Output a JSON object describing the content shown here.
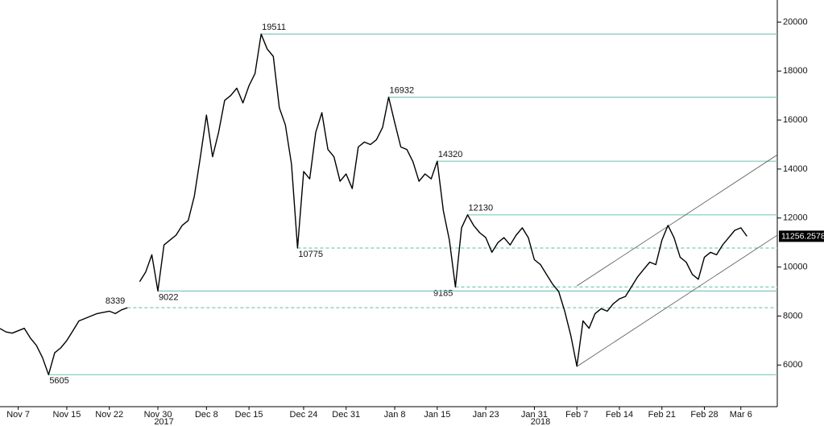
{
  "chart_data": {
    "type": "line",
    "color": "#000000",
    "level_color": "#7cc9bb",
    "x": [
      "2017-11-04",
      "2017-11-05",
      "2017-11-06",
      "2017-11-07",
      "2017-11-08",
      "2017-11-09",
      "2017-11-10",
      "2017-11-11",
      "2017-11-12",
      "2017-11-13",
      "2017-11-14",
      "2017-11-15",
      "2017-11-16",
      "2017-11-17",
      "2017-11-18",
      "2017-11-19",
      "2017-11-20",
      "2017-11-21",
      "2017-11-22",
      "2017-11-23",
      "2017-11-24",
      "2017-11-25",
      "2017-11-26",
      "2017-11-27",
      "2017-11-28",
      "2017-11-29",
      "2017-11-30",
      "2017-12-01",
      "2017-12-02",
      "2017-12-03",
      "2017-12-04",
      "2017-12-05",
      "2017-12-06",
      "2017-12-07",
      "2017-12-08",
      "2017-12-09",
      "2017-12-10",
      "2017-12-11",
      "2017-12-12",
      "2017-12-13",
      "2017-12-14",
      "2017-12-15",
      "2017-12-16",
      "2017-12-17",
      "2017-12-18",
      "2017-12-19",
      "2017-12-20",
      "2017-12-21",
      "2017-12-22",
      "2017-12-23",
      "2017-12-24",
      "2017-12-25",
      "2017-12-26",
      "2017-12-27",
      "2017-12-28",
      "2017-12-29",
      "2017-12-30",
      "2017-12-31",
      "2018-01-01",
      "2018-01-02",
      "2018-01-03",
      "2018-01-04",
      "2018-01-05",
      "2018-01-06",
      "2018-01-07",
      "2018-01-08",
      "2018-01-09",
      "2018-01-10",
      "2018-01-11",
      "2018-01-12",
      "2018-01-13",
      "2018-01-14",
      "2018-01-15",
      "2018-01-16",
      "2018-01-17",
      "2018-01-18",
      "2018-01-19",
      "2018-01-20",
      "2018-01-21",
      "2018-01-22",
      "2018-01-23",
      "2018-01-24",
      "2018-01-25",
      "2018-01-26",
      "2018-01-27",
      "2018-01-28",
      "2018-01-29",
      "2018-01-30",
      "2018-01-31",
      "2018-02-01",
      "2018-02-02",
      "2018-02-03",
      "2018-02-04",
      "2018-02-05",
      "2018-02-06",
      "2018-02-07",
      "2018-02-08",
      "2018-02-09",
      "2018-02-10",
      "2018-02-11",
      "2018-02-12",
      "2018-02-13",
      "2018-02-14",
      "2018-02-15",
      "2018-02-16",
      "2018-02-17",
      "2018-02-18",
      "2018-02-19",
      "2018-02-20",
      "2018-02-21",
      "2018-02-22",
      "2018-02-23",
      "2018-02-24",
      "2018-02-25",
      "2018-02-26",
      "2018-02-27",
      "2018-02-28",
      "2018-03-01",
      "2018-03-02",
      "2018-03-03",
      "2018-03-04",
      "2018-03-05",
      "2018-03-06",
      "2018-03-07"
    ],
    "values": [
      7490,
      7350,
      7300,
      7400,
      7500,
      7100,
      6800,
      6300,
      5605,
      6500,
      6700,
      7000,
      7400,
      7800,
      7900,
      8000,
      8100,
      8150,
      8200,
      8100,
      8250,
      8339,
      null,
      9400,
      9800,
      10500,
      9022,
      10900,
      11100,
      11300,
      11700,
      11900,
      12900,
      14500,
      16200,
      14500,
      15500,
      16800,
      17000,
      17300,
      16700,
      17400,
      17900,
      19511,
      18900,
      18600,
      16500,
      15800,
      14200,
      10775,
      13900,
      13600,
      15500,
      16300,
      14800,
      14500,
      13500,
      13800,
      13200,
      14900,
      15100,
      15000,
      15200,
      15700,
      16932,
      15900,
      14900,
      14800,
      14300,
      13500,
      13800,
      13600,
      14320,
      12300,
      11100,
      9185,
      11600,
      12130,
      11700,
      11400,
      11200,
      10600,
      11000,
      11200,
      10900,
      11300,
      11600,
      11200,
      10300,
      10100,
      9700,
      9300,
      9000,
      8200,
      7200,
      5950,
      7800,
      7500,
      8100,
      8300,
      8200,
      8500,
      8700,
      8800,
      9200,
      9600,
      9900,
      10200,
      10100,
      11100,
      11700,
      11200,
      10400,
      10200,
      9700,
      9500,
      10400,
      10600,
      10500,
      10900,
      11200,
      11500,
      11600,
      11256.2578
    ],
    "xlim": [
      "2017-11-04",
      "2018-03-12"
    ],
    "ylim": [
      4300,
      20900
    ],
    "yticks": [
      6000,
      8000,
      10000,
      12000,
      14000,
      16000,
      18000,
      20000
    ],
    "xticks": [
      {
        "value": "2017-11-07",
        "label": "Nov 7"
      },
      {
        "value": "2017-11-15",
        "label": "Nov 15"
      },
      {
        "value": "2017-11-22",
        "label": "Nov 22"
      },
      {
        "value": "2017-11-30",
        "label": "Nov 30"
      },
      {
        "value": "2017-12-08",
        "label": "Dec 8"
      },
      {
        "value": "2017-12-15",
        "label": "Dec 15"
      },
      {
        "value": "2017-12-24",
        "label": "Dec 24"
      },
      {
        "value": "2017-12-31",
        "label": "Dec 31"
      },
      {
        "value": "2018-01-08",
        "label": "Jan 8"
      },
      {
        "value": "2018-01-15",
        "label": "Jan 15"
      },
      {
        "value": "2018-01-23",
        "label": "Jan 23"
      },
      {
        "value": "2018-01-31",
        "label": "Jan 31"
      },
      {
        "value": "2018-02-07",
        "label": "Feb 7"
      },
      {
        "value": "2018-02-14",
        "label": "Feb 14"
      },
      {
        "value": "2018-02-21",
        "label": "Feb 21"
      },
      {
        "value": "2018-02-28",
        "label": "Feb 28"
      },
      {
        "value": "2018-03-06",
        "label": "Mar 6"
      }
    ],
    "year_ticks": [
      {
        "value": "2017-12-01",
        "label": "2017"
      },
      {
        "value": "2018-02-01",
        "label": "2018"
      }
    ],
    "levels": [
      {
        "value": 19511,
        "date": "2017-12-17",
        "style": "solid"
      },
      {
        "value": 16932,
        "date": "2018-01-07",
        "style": "solid"
      },
      {
        "value": 14320,
        "date": "2018-01-15",
        "style": "solid"
      },
      {
        "value": 12130,
        "date": "2018-01-20",
        "style": "solid"
      },
      {
        "value": 10775,
        "date": "2017-12-23",
        "style": "dashed"
      },
      {
        "value": 9185,
        "date": "2018-01-18",
        "style": "dashed"
      },
      {
        "value": 9022,
        "date": "2017-11-30",
        "style": "solid"
      },
      {
        "value": 8339,
        "date": "2017-11-25",
        "style": "dashed"
      },
      {
        "value": 5605,
        "date": "2017-11-12",
        "style": "solid"
      }
    ],
    "channel": {
      "x": [
        "2018-02-07",
        "2018-03-12"
      ],
      "upper": [
        9230,
        14580
      ],
      "lower": [
        5940,
        11300
      ]
    }
  }
}
